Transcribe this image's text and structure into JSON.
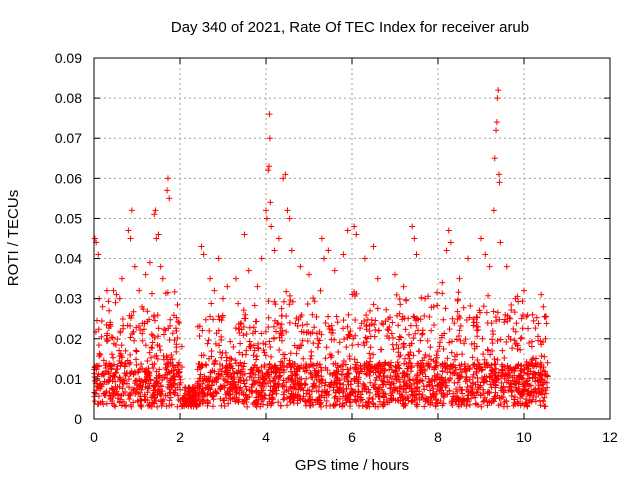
{
  "chart_data": {
    "type": "scatter",
    "title": "Day 340 of 2021, Rate Of TEC Index for receiver arub",
    "xlabel": "GPS time / hours",
    "ylabel": "ROTI / TECUs",
    "xlim": [
      0,
      12
    ],
    "ylim": [
      0,
      0.09
    ],
    "xticks": [
      0,
      2,
      4,
      6,
      8,
      10,
      12
    ],
    "xtick_labels": [
      "0",
      "2",
      "4",
      "6",
      "8",
      "10",
      "12"
    ],
    "yticks": [
      0,
      0.01,
      0.02,
      0.03,
      0.04,
      0.05,
      0.06,
      0.07,
      0.08,
      0.09
    ],
    "ytick_labels": [
      "0",
      "0.01",
      "0.02",
      "0.03",
      "0.04",
      "0.05",
      "0.06",
      "0.07",
      "0.08",
      "0.09"
    ],
    "grid": true,
    "marker": "+",
    "series": [
      {
        "name": "ROTI",
        "color": "#ff0000",
        "points": [
          [
            0.02,
            0.045
          ],
          [
            0.05,
            0.044
          ],
          [
            0.1,
            0.041
          ],
          [
            0.12,
            0.03
          ],
          [
            0.2,
            0.028
          ],
          [
            0.3,
            0.032
          ],
          [
            0.35,
            0.027
          ],
          [
            0.5,
            0.029
          ],
          [
            0.6,
            0.03
          ],
          [
            0.65,
            0.035
          ],
          [
            0.8,
            0.047
          ],
          [
            0.85,
            0.045
          ],
          [
            0.88,
            0.052
          ],
          [
            0.95,
            0.038
          ],
          [
            1.05,
            0.032
          ],
          [
            1.2,
            0.036
          ],
          [
            1.3,
            0.039
          ],
          [
            1.4,
            0.051
          ],
          [
            1.43,
            0.052
          ],
          [
            1.45,
            0.045
          ],
          [
            1.5,
            0.046
          ],
          [
            1.55,
            0.038
          ],
          [
            1.6,
            0.035
          ],
          [
            1.7,
            0.057
          ],
          [
            1.72,
            0.06
          ],
          [
            1.75,
            0.055
          ],
          [
            2.5,
            0.043
          ],
          [
            2.55,
            0.041
          ],
          [
            2.7,
            0.035
          ],
          [
            2.8,
            0.032
          ],
          [
            2.9,
            0.04
          ],
          [
            3.0,
            0.03
          ],
          [
            3.1,
            0.033
          ],
          [
            3.3,
            0.035
          ],
          [
            3.5,
            0.046
          ],
          [
            3.6,
            0.037
          ],
          [
            3.8,
            0.033
          ],
          [
            3.9,
            0.04
          ],
          [
            4.0,
            0.052
          ],
          [
            4.02,
            0.05
          ],
          [
            4.05,
            0.062
          ],
          [
            4.07,
            0.063
          ],
          [
            4.08,
            0.076
          ],
          [
            4.09,
            0.07
          ],
          [
            4.1,
            0.054
          ],
          [
            4.12,
            0.048
          ],
          [
            4.2,
            0.042
          ],
          [
            4.3,
            0.045
          ],
          [
            4.4,
            0.06
          ],
          [
            4.45,
            0.061
          ],
          [
            4.5,
            0.052
          ],
          [
            4.55,
            0.05
          ],
          [
            4.6,
            0.042
          ],
          [
            4.8,
            0.038
          ],
          [
            5.0,
            0.036
          ],
          [
            5.3,
            0.045
          ],
          [
            5.35,
            0.04
          ],
          [
            5.45,
            0.042
          ],
          [
            5.6,
            0.037
          ],
          [
            5.8,
            0.041
          ],
          [
            5.9,
            0.047
          ],
          [
            6.05,
            0.048
          ],
          [
            6.1,
            0.046
          ],
          [
            6.3,
            0.04
          ],
          [
            6.5,
            0.043
          ],
          [
            6.6,
            0.035
          ],
          [
            7.0,
            0.036
          ],
          [
            7.2,
            0.033
          ],
          [
            7.4,
            0.048
          ],
          [
            7.45,
            0.045
          ],
          [
            7.5,
            0.041
          ],
          [
            7.7,
            0.03
          ],
          [
            7.9,
            0.028
          ],
          [
            8.1,
            0.034
          ],
          [
            8.2,
            0.042
          ],
          [
            8.25,
            0.047
          ],
          [
            8.3,
            0.044
          ],
          [
            8.5,
            0.035
          ],
          [
            8.7,
            0.04
          ],
          [
            9.0,
            0.045
          ],
          [
            9.1,
            0.041
          ],
          [
            9.2,
            0.038
          ],
          [
            9.3,
            0.052
          ],
          [
            9.32,
            0.065
          ],
          [
            9.35,
            0.072
          ],
          [
            9.37,
            0.074
          ],
          [
            9.38,
            0.08
          ],
          [
            9.4,
            0.082
          ],
          [
            9.42,
            0.061
          ],
          [
            9.43,
            0.059
          ],
          [
            9.45,
            0.044
          ],
          [
            9.6,
            0.038
          ],
          [
            9.8,
            0.03
          ],
          [
            10.0,
            0.032
          ],
          [
            10.2,
            0.026
          ],
          [
            10.4,
            0.031
          ],
          [
            10.45,
            0.028
          ],
          [
            10.5,
            0.02
          ]
        ]
      }
    ]
  }
}
